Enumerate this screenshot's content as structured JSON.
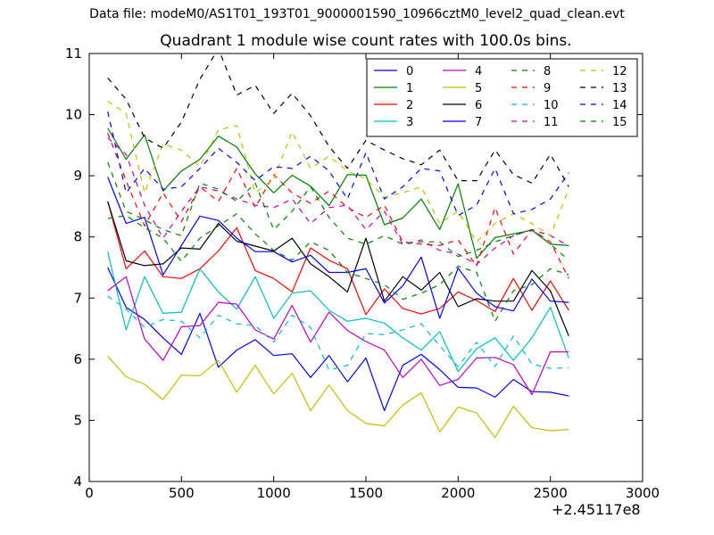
{
  "suptitle": "Data file: modeM0/AS1T01_193T01_9000001590_10966cztM0_level2_quad_clean.evt",
  "chart_data": {
    "type": "line",
    "title": "Quadrant 1 module wise count rates with 100.0s bins.",
    "xlabel": "",
    "ylabel": "",
    "x_offset_label": "+2.45117e8",
    "xlim": [
      0,
      3000
    ],
    "ylim": [
      4,
      11
    ],
    "xticks": [
      0,
      500,
      1000,
      1500,
      2000,
      2500,
      3000
    ],
    "yticks": [
      4,
      5,
      6,
      7,
      8,
      9,
      10,
      11
    ],
    "grid": false,
    "legend_placement": "top-right",
    "legend_columns": 4,
    "x": [
      100,
      200,
      300,
      400,
      500,
      600,
      700,
      800,
      900,
      1000,
      1100,
      1200,
      1300,
      1400,
      1500,
      1600,
      1700,
      1800,
      1900,
      2000,
      2100,
      2200,
      2300,
      2400,
      2500,
      2600
    ],
    "series": [
      {
        "name": "0",
        "color": "#0000ff",
        "dash": false,
        "values": [
          7.5,
          6.85,
          6.65,
          6.35,
          6.08,
          6.75,
          5.87,
          6.15,
          6.32,
          6.06,
          6.09,
          5.7,
          6.06,
          5.63,
          6.02,
          5.16,
          5.9,
          6.08,
          5.83,
          5.54,
          5.53,
          5.38,
          5.67,
          5.47,
          5.46,
          5.4
        ]
      },
      {
        "name": "1",
        "color": "#008000",
        "dash": false,
        "values": [
          9.78,
          9.27,
          9.67,
          8.75,
          9.08,
          9.27,
          9.65,
          9.47,
          9.03,
          8.72,
          9.01,
          8.83,
          8.51,
          9.02,
          9.01,
          8.2,
          8.31,
          8.62,
          8.12,
          8.87,
          7.65,
          7.99,
          8.05,
          8.11,
          7.88,
          7.86
        ]
      },
      {
        "name": "2",
        "color": "#ff0000",
        "dash": false,
        "values": [
          8.58,
          7.48,
          7.77,
          7.35,
          7.32,
          7.48,
          7.77,
          8.15,
          7.45,
          7.32,
          7.1,
          7.82,
          7.62,
          7.48,
          6.73,
          7.15,
          6.83,
          6.74,
          6.83,
          7.1,
          6.96,
          6.78,
          7.32,
          6.8,
          7.28,
          6.8
        ]
      },
      {
        "name": "3",
        "color": "#00bfbf",
        "dash": false,
        "values": [
          7.76,
          6.48,
          7.35,
          6.75,
          6.77,
          7.48,
          7.1,
          6.82,
          7.35,
          6.67,
          7.08,
          7.12,
          6.8,
          6.62,
          6.67,
          6.59,
          6.35,
          6.15,
          6.45,
          5.8,
          6.17,
          6.35,
          5.98,
          6.35,
          6.85,
          6.02
        ]
      },
      {
        "name": "4",
        "color": "#bf00bf",
        "dash": false,
        "values": [
          7.12,
          7.35,
          6.33,
          5.98,
          6.53,
          6.55,
          6.93,
          6.9,
          6.48,
          6.33,
          6.88,
          6.28,
          6.77,
          6.47,
          6.29,
          6.15,
          5.7,
          6.0,
          5.57,
          5.67,
          6.02,
          6.03,
          5.91,
          5.42,
          6.12,
          6.12
        ]
      },
      {
        "name": "5",
        "color": "#bfbf00",
        "dash": false,
        "values": [
          6.05,
          5.71,
          5.59,
          5.34,
          5.74,
          5.73,
          5.98,
          5.46,
          5.9,
          5.43,
          5.77,
          5.16,
          5.58,
          5.16,
          4.95,
          4.91,
          5.25,
          5.45,
          4.81,
          5.22,
          5.12,
          4.72,
          5.23,
          4.88,
          4.83,
          4.85
        ]
      },
      {
        "name": "6",
        "color": "#000000",
        "dash": false,
        "values": [
          8.58,
          7.61,
          7.53,
          7.56,
          7.82,
          7.8,
          8.22,
          7.93,
          7.85,
          7.77,
          7.98,
          7.56,
          7.35,
          7.1,
          7.98,
          6.95,
          7.35,
          7.13,
          7.42,
          6.86,
          6.99,
          6.95,
          6.95,
          7.45,
          7.12,
          6.38
        ]
      },
      {
        "name": "7",
        "color": "#0000ff",
        "dash": false,
        "values": [
          8.98,
          8.22,
          8.32,
          7.38,
          7.86,
          8.34,
          8.27,
          7.98,
          7.76,
          7.76,
          7.59,
          7.7,
          7.42,
          7.42,
          7.48,
          6.92,
          7.2,
          7.67,
          6.67,
          7.49,
          7.08,
          6.86,
          6.79,
          7.31,
          6.95,
          6.93
        ]
      },
      {
        "name": "8",
        "color": "#008000",
        "dash": true,
        "values": [
          8.3,
          8.35,
          8.15,
          7.98,
          7.6,
          7.98,
          8.18,
          8.38,
          8.05,
          7.78,
          7.62,
          7.92,
          7.78,
          7.42,
          7.32,
          7.22,
          6.98,
          7.08,
          7.22,
          7.52,
          7.42,
          6.62,
          7.12,
          7.22,
          7.48,
          7.38
        ]
      },
      {
        "name": "9",
        "color": "#ff0000",
        "dash": true,
        "values": [
          9.7,
          8.92,
          8.18,
          8.72,
          8.25,
          8.82,
          8.58,
          9.12,
          8.48,
          9.02,
          8.72,
          8.55,
          8.75,
          8.48,
          8.32,
          8.52,
          7.92,
          7.88,
          7.86,
          7.95,
          7.52,
          8.48,
          7.72,
          8.12,
          7.92,
          7.32
        ]
      },
      {
        "name": "10",
        "color": "#00bfbf",
        "dash": true,
        "values": [
          7.03,
          6.82,
          6.52,
          6.65,
          6.62,
          6.35,
          6.72,
          6.58,
          6.55,
          6.28,
          6.72,
          6.52,
          5.82,
          5.9,
          6.42,
          6.4,
          6.48,
          6.58,
          6.22,
          5.88,
          6.28,
          5.88,
          6.38,
          5.92,
          5.85,
          5.86
        ]
      },
      {
        "name": "11",
        "color": "#bf00bf",
        "dash": true,
        "values": [
          9.62,
          9.35,
          8.52,
          7.98,
          8.42,
          8.82,
          8.75,
          8.62,
          8.52,
          8.48,
          8.62,
          8.22,
          8.48,
          8.52,
          8.12,
          8.42,
          7.88,
          7.95,
          7.78,
          7.72,
          7.55,
          7.82,
          8.02,
          8.12,
          8.02,
          7.85
        ]
      },
      {
        "name": "12",
        "color": "#bfbf00",
        "dash": true,
        "values": [
          10.22,
          10.02,
          8.72,
          9.52,
          9.42,
          9.15,
          9.75,
          9.82,
          8.72,
          8.95,
          9.72,
          9.12,
          9.32,
          9.08,
          8.95,
          8.65,
          8.72,
          8.82,
          8.22,
          8.42,
          7.92,
          8.22,
          8.38,
          8.22,
          8.02,
          8.78
        ]
      },
      {
        "name": "13",
        "color": "#000000",
        "dash": true,
        "values": [
          10.6,
          10.25,
          9.62,
          9.45,
          9.88,
          10.58,
          11.08,
          10.32,
          10.48,
          10.02,
          10.35,
          9.98,
          9.48,
          9.12,
          9.58,
          9.42,
          9.28,
          9.18,
          9.42,
          8.92,
          8.92,
          9.42,
          9.02,
          8.88,
          9.35,
          8.82
        ]
      },
      {
        "name": "14",
        "color": "#0000ff",
        "dash": true,
        "values": [
          10.05,
          8.72,
          9.12,
          8.78,
          8.82,
          9.12,
          9.45,
          9.22,
          8.92,
          9.15,
          9.12,
          9.32,
          9.08,
          8.62,
          9.38,
          8.62,
          8.82,
          9.12,
          9.08,
          8.35,
          8.52,
          9.12,
          8.38,
          8.45,
          8.62,
          9.05
        ]
      },
      {
        "name": "15",
        "color": "#008000",
        "dash": true,
        "values": [
          9.22,
          8.42,
          8.28,
          8.12,
          8.02,
          8.88,
          8.78,
          8.58,
          8.88,
          8.12,
          8.42,
          8.82,
          8.32,
          7.98,
          7.88,
          8.02,
          7.88,
          7.92,
          7.92,
          7.68,
          7.78,
          7.92,
          8.02,
          8.12,
          7.88,
          7.62
        ]
      }
    ]
  }
}
